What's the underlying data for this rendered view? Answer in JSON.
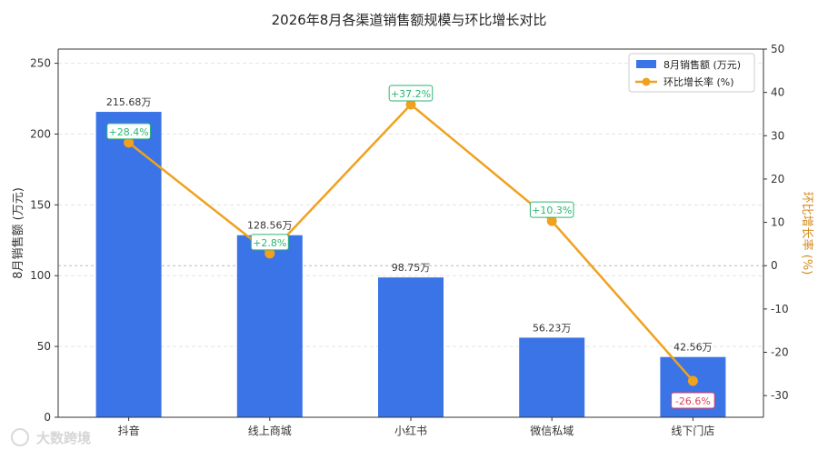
{
  "chart_data": {
    "type": "bar",
    "title": "2026年8月各渠道销售额规模与环比增长对比",
    "categories": [
      "抖音",
      "线上商城",
      "小红书",
      "微信私域",
      "线下门店"
    ],
    "series": [
      {
        "name": "8月销售额 (万元)",
        "type": "bar",
        "axis": "left",
        "values": [
          215.68,
          128.56,
          98.75,
          56.23,
          42.56
        ],
        "labels": [
          "215.68万",
          "128.56万",
          "98.75万",
          "56.23万",
          "42.56万"
        ],
        "color": "#3B74E6"
      },
      {
        "name": "环比增长率 (%)",
        "type": "line",
        "axis": "right",
        "values": [
          28.4,
          2.8,
          37.2,
          10.3,
          -26.6
        ],
        "labels": [
          "+28.4%",
          "+2.8%",
          "+37.2%",
          "+10.3%",
          "-26.6%"
        ],
        "color": "#F0A11E"
      }
    ],
    "y_left": {
      "label": "8月销售额 (万元)",
      "min": 0,
      "max": 260,
      "ticks": [
        0,
        50,
        100,
        150,
        200,
        250
      ]
    },
    "y_right": {
      "label": "环比增长率 (%)",
      "min": -35,
      "max": 50,
      "ticks": [
        -30,
        -20,
        -10,
        0,
        10,
        20,
        30,
        40,
        50
      ]
    },
    "grid": true,
    "legend_position": "top-right",
    "colors": {
      "positive_label": "#2BB673",
      "negative_label": "#E0405E",
      "grid": "#e3e3e3",
      "zero_line": "#bbbbbb",
      "right_axis_label": "#D4891A"
    }
  },
  "watermark": "大数跨境"
}
